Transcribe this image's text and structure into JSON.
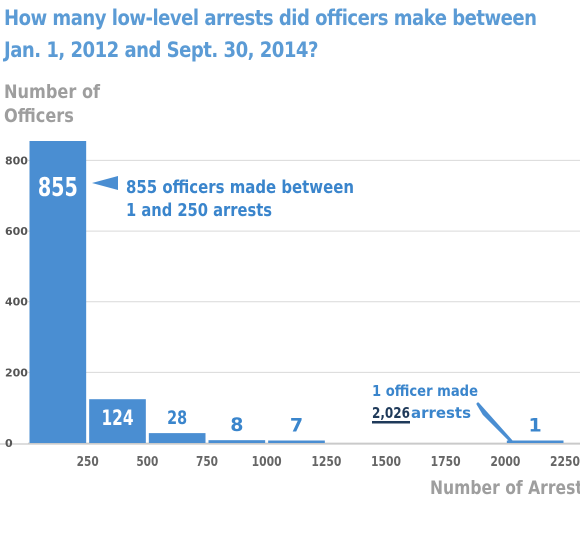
{
  "chart_data": {
    "type": "bar",
    "title": "How many low-level arrests did officers make between Jan. 1, 2012 and Sept. 30, 2014?",
    "title_lines": [
      "How many low-level arrests did officers make between",
      "Jan. 1, 2012 and Sept. 30, 2014?"
    ],
    "ylabel_lines": [
      "Number of",
      "Officers"
    ],
    "xlabel": "Number of Arrests",
    "xlim": [
      0,
      2250
    ],
    "ylim": [
      0,
      855
    ],
    "x_ticks": [
      "250",
      "500",
      "750",
      "1000",
      "1250",
      "1500",
      "1750",
      "2000",
      "2250"
    ],
    "y_ticks": [
      "0",
      "200",
      "400",
      "600",
      "800"
    ],
    "bins": [
      {
        "start": 0,
        "end": 250,
        "value": 855,
        "label": "855"
      },
      {
        "start": 250,
        "end": 500,
        "value": 124,
        "label": "124"
      },
      {
        "start": 500,
        "end": 750,
        "value": 28,
        "label": "28"
      },
      {
        "start": 750,
        "end": 1000,
        "value": 8,
        "label": "8"
      },
      {
        "start": 1000,
        "end": 1250,
        "value": 7,
        "label": "7"
      },
      {
        "start": 1250,
        "end": 1500,
        "value": 0,
        "label": ""
      },
      {
        "start": 1500,
        "end": 1750,
        "value": 0,
        "label": ""
      },
      {
        "start": 1750,
        "end": 2000,
        "value": 0,
        "label": ""
      },
      {
        "start": 2000,
        "end": 2250,
        "value": 1,
        "label": "1"
      }
    ],
    "annotations": {
      "first_bin": [
        "855 officers made between",
        "1 and 250 arrests"
      ],
      "outlier": {
        "line1": "1 officer made",
        "number": "2,026",
        "rest": " arrests"
      }
    },
    "grid": true,
    "colors": {
      "bar": "#4a8ed2",
      "title": "#5b9bd5",
      "axis_label": "#9e9e9e",
      "annotation": "#3a85cc",
      "underline": "#1f3a5a"
    }
  }
}
